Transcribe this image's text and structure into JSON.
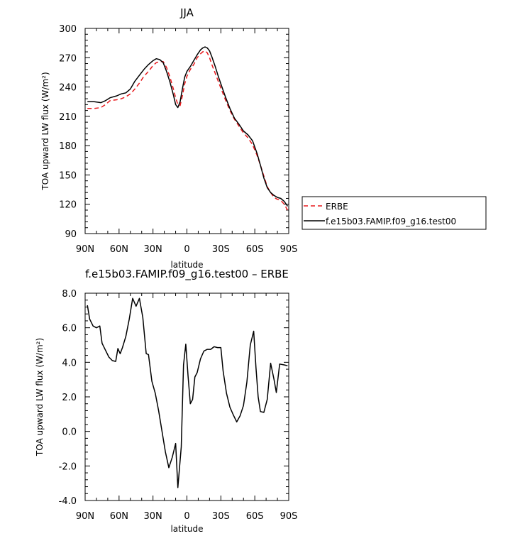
{
  "chart_data": [
    {
      "type": "line",
      "title": "JJA",
      "xlabel": "latitude",
      "ylabel": "TOA upward LW flux (W/m²)",
      "xlim": [
        -90,
        90
      ],
      "ylim": [
        90,
        300
      ],
      "x_ticks": [
        -90,
        -60,
        -30,
        0,
        30,
        60,
        90
      ],
      "x_tick_labels": [
        "90N",
        "60N",
        "30N",
        "0",
        "30S",
        "60S",
        "90S"
      ],
      "y_ticks": [
        90,
        120,
        150,
        180,
        210,
        240,
        270,
        300
      ],
      "y_tick_labels": [
        "90",
        "120",
        "150",
        "180",
        "210",
        "240",
        "270",
        "300"
      ],
      "legend_position": "right",
      "legend_entries": [
        "ERBE",
        "f.e15b03.FAMIP.f09_g16.test00"
      ],
      "grid": false,
      "series": [
        {
          "name": "ERBE",
          "color": "#e8191c",
          "dash": "dashed",
          "x": [
            -88,
            -82,
            -76,
            -72,
            -68,
            -62,
            -58,
            -54,
            -50,
            -46,
            -42,
            -38,
            -34,
            -30,
            -27,
            -24,
            -21,
            -18,
            -15,
            -12,
            -10,
            -8,
            -6,
            -4,
            -2,
            0,
            3,
            6,
            9,
            12,
            14,
            16,
            18,
            20,
            22,
            25,
            28,
            31,
            34,
            38,
            42,
            46,
            50,
            54,
            58,
            62,
            65,
            68,
            71,
            74,
            77,
            80,
            83,
            86,
            89
          ],
          "values": [
            218,
            218,
            219,
            222,
            226,
            227,
            228,
            230,
            233,
            238,
            244,
            251,
            256,
            262,
            265,
            266,
            266,
            260,
            250,
            238,
            229,
            222,
            221,
            231,
            243,
            251,
            258,
            263,
            270,
            274,
            276,
            277,
            275,
            270,
            263,
            254,
            245,
            236,
            227,
            216,
            207,
            200,
            193,
            188,
            181,
            170,
            160,
            149,
            138,
            132,
            127,
            125,
            124,
            120,
            114
          ]
        },
        {
          "name": "f.e15b03.FAMIP.f09_g16.test00",
          "color": "#000000",
          "dash": "solid",
          "x": [
            -88,
            -82,
            -76,
            -72,
            -68,
            -62,
            -58,
            -54,
            -50,
            -46,
            -42,
            -38,
            -34,
            -30,
            -27,
            -24,
            -21,
            -18,
            -15,
            -12,
            -10,
            -8,
            -6,
            -4,
            -2,
            0,
            3,
            6,
            9,
            12,
            14,
            16,
            18,
            20,
            22,
            25,
            28,
            31,
            34,
            38,
            42,
            46,
            50,
            54,
            58,
            62,
            65,
            68,
            71,
            74,
            77,
            80,
            83,
            86,
            89
          ],
          "values": [
            225,
            225,
            224,
            226,
            229,
            231,
            233,
            234,
            238,
            246,
            252,
            258,
            263,
            267,
            269,
            268,
            265,
            256,
            245,
            232,
            222,
            219,
            225,
            238,
            250,
            256,
            261,
            267,
            273,
            278,
            280,
            281,
            280,
            277,
            271,
            261,
            250,
            240,
            230,
            218,
            208,
            202,
            195,
            191,
            185,
            172,
            160,
            147,
            137,
            132,
            129,
            127,
            126,
            123,
            118
          ]
        }
      ]
    },
    {
      "type": "line",
      "title": "f.e15b03.FAMIP.f09_g16.test00 – ERBE",
      "xlabel": "latitude",
      "ylabel": "TOA upward LW flux (W/m²)",
      "xlim": [
        -90,
        90
      ],
      "ylim": [
        -4,
        8
      ],
      "x_ticks": [
        -90,
        -60,
        -30,
        0,
        30,
        60,
        90
      ],
      "x_tick_labels": [
        "90N",
        "60N",
        "30N",
        "0",
        "30S",
        "60S",
        "90S"
      ],
      "y_ticks": [
        -4,
        -2,
        0,
        2,
        4,
        6,
        8
      ],
      "y_tick_labels": [
        "-4.0",
        "-2.0",
        "0.0",
        "2.0",
        "4.0",
        "6.0",
        "8.0"
      ],
      "grid": false,
      "series": [
        {
          "color": "#000000",
          "dash": "solid",
          "x": [
            -88,
            -86,
            -83,
            -80,
            -77,
            -75,
            -72,
            -69,
            -66,
            -63,
            -61,
            -59,
            -57,
            -54,
            -51,
            -48,
            -45,
            -42,
            -39,
            -36,
            -34,
            -31,
            -28,
            -25,
            -22,
            -19,
            -16,
            -13,
            -10,
            -8,
            -5,
            -3,
            -1,
            1,
            3,
            5,
            7,
            9,
            12,
            15,
            18,
            21,
            24,
            27,
            30,
            32,
            35,
            38,
            41,
            44,
            47,
            50,
            53,
            56,
            59,
            61,
            63,
            65,
            68,
            71,
            74,
            77,
            79,
            82,
            86,
            89
          ],
          "values": [
            7.3,
            6.5,
            6.1,
            6.0,
            6.1,
            5.1,
            4.7,
            4.3,
            4.1,
            4.05,
            4.8,
            4.5,
            4.85,
            5.5,
            6.5,
            7.7,
            7.25,
            7.7,
            6.6,
            4.5,
            4.45,
            2.9,
            2.2,
            1.2,
            0.0,
            -1.2,
            -2.1,
            -1.5,
            -0.7,
            -3.25,
            -0.9,
            3.85,
            5.05,
            3.2,
            1.6,
            1.85,
            3.15,
            3.4,
            4.2,
            4.65,
            4.75,
            4.75,
            4.9,
            4.85,
            4.85,
            3.5,
            2.2,
            1.4,
            0.95,
            0.55,
            0.9,
            1.5,
            2.85,
            5.0,
            5.8,
            3.7,
            2.0,
            1.15,
            1.1,
            1.85,
            3.95,
            3.0,
            2.25,
            3.9,
            3.85,
            3.8
          ]
        }
      ]
    }
  ]
}
